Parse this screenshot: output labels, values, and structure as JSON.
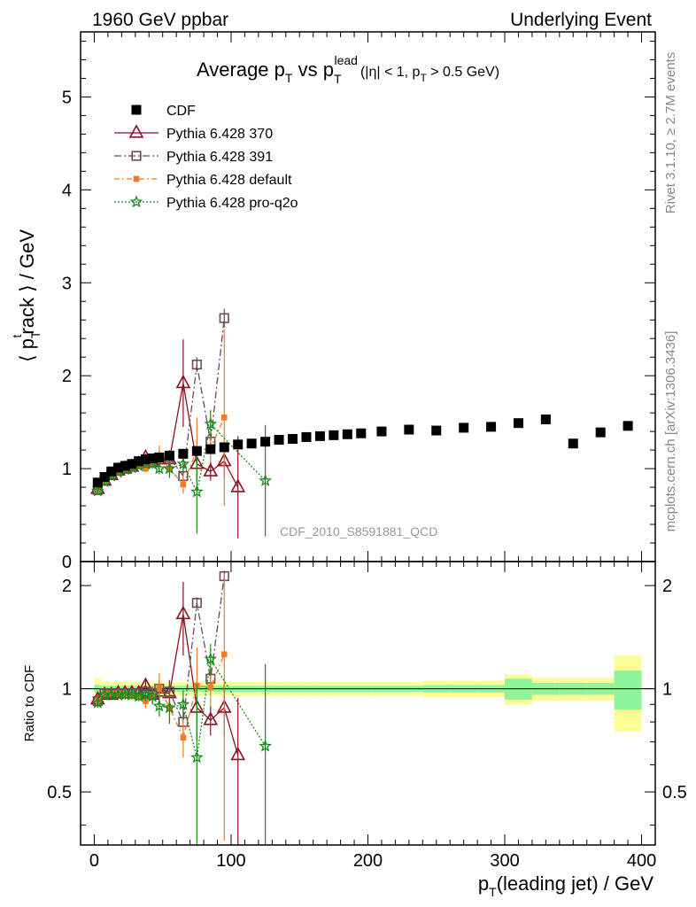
{
  "header": {
    "left": "1960 GeV ppbar",
    "right": "Underlying Event"
  },
  "side_labels": {
    "rivet": "Rivet 3.1.10, ≥ 2.7M events",
    "mcplots": "mcplots.cern.ch [arXiv:1306.3436]"
  },
  "chart_data": {
    "type": "scatter",
    "title_parts": {
      "a": "Average p",
      "a_sub": "T",
      "b": " vs p",
      "b_sub": "T",
      "b_sup": "lead",
      "c": "(|η| < 1, p",
      "c_sub": "T",
      "d": " > 0.5 GeV)"
    },
    "analysis_id": "CDF_2010_S8591881_QCD",
    "ylabel_main_parts": {
      "a": "⟨ p",
      "sup": "t",
      "sub": "T",
      "b": "rack ⟩ / GeV"
    },
    "ylabel_ratio": "Ratio to CDF",
    "xlabel_parts": {
      "a": "p",
      "sub": "T",
      "b": "(leading jet) / GeV"
    },
    "xlim": [
      -10,
      410
    ],
    "ylim_main": [
      0,
      5.7
    ],
    "ylim_ratio": [
      0.35,
      2.35
    ],
    "ratio_log": true,
    "x_ticks": [
      0,
      100,
      200,
      300,
      400
    ],
    "y_ticks_main": [
      0,
      1,
      2,
      3,
      4,
      5
    ],
    "y_ticks_ratio": [
      0.5,
      1,
      2
    ],
    "legend": [
      "CDF",
      "Pythia 6.428 370",
      "Pythia 6.428 391",
      "Pythia 6.428 default",
      "Pythia 6.428 pro-q2o"
    ],
    "legend_position": "top-left",
    "colors": {
      "cdf": "#000000",
      "p370": "#8b1020",
      "p391": "#6b4a5a",
      "pdefault": "#f47a20",
      "pq2o": "#1a8a1a",
      "band_inner": "#8ff59a",
      "band_outer": "#fdfd96"
    },
    "cdf": {
      "name": "CDF",
      "x": [
        2.5,
        7.5,
        12.5,
        17.5,
        22.5,
        27.5,
        32.5,
        37.5,
        42.5,
        47.5,
        55,
        65,
        75,
        85,
        95,
        105,
        115,
        125,
        135,
        145,
        155,
        165,
        175,
        185,
        195,
        210,
        230,
        250,
        270,
        290,
        310,
        330,
        350,
        370,
        390
      ],
      "y": [
        0.85,
        0.91,
        0.97,
        1.01,
        1.03,
        1.05,
        1.08,
        1.1,
        1.11,
        1.12,
        1.14,
        1.16,
        1.19,
        1.21,
        1.23,
        1.26,
        1.27,
        1.29,
        1.31,
        1.32,
        1.34,
        1.35,
        1.36,
        1.37,
        1.38,
        1.4,
        1.42,
        1.41,
        1.44,
        1.45,
        1.49,
        1.53,
        1.27,
        1.39,
        1.46
      ]
    },
    "band_inner_halfwidth": [
      0.025,
      0.02,
      0.02,
      0.02,
      0.02,
      0.02,
      0.02,
      0.02,
      0.02,
      0.02,
      0.02,
      0.02,
      0.02,
      0.02,
      0.02,
      0.02,
      0.02,
      0.02,
      0.02,
      0.02,
      0.02,
      0.02,
      0.02,
      0.02,
      0.02,
      0.02,
      0.02,
      0.025,
      0.025,
      0.025,
      0.07,
      0.04,
      0.04,
      0.04,
      0.13
    ],
    "band_outer_halfwidth": [
      0.075,
      0.05,
      0.05,
      0.05,
      0.05,
      0.05,
      0.045,
      0.045,
      0.045,
      0.045,
      0.045,
      0.045,
      0.045,
      0.045,
      0.045,
      0.045,
      0.045,
      0.045,
      0.045,
      0.045,
      0.045,
      0.045,
      0.045,
      0.045,
      0.045,
      0.045,
      0.045,
      0.055,
      0.055,
      0.055,
      0.1,
      0.075,
      0.075,
      0.075,
      0.25
    ],
    "series": [
      {
        "name": "Pythia 6.428 370",
        "key": "p370",
        "marker": "triangle",
        "dash": "",
        "x": [
          2.5,
          7.5,
          12.5,
          17.5,
          22.5,
          27.5,
          32.5,
          37.5,
          42.5,
          47.5,
          55,
          65,
          75,
          85,
          95,
          105
        ],
        "y": [
          0.78,
          0.87,
          0.93,
          0.98,
          1.0,
          1.02,
          1.05,
          1.12,
          1.07,
          1.1,
          1.1,
          1.92,
          1.05,
          0.97,
          1.08,
          0.8
        ],
        "err": [
          0.03,
          0.03,
          0.03,
          0.03,
          0.03,
          0.03,
          0.03,
          0.04,
          0.06,
          0.06,
          0.1,
          0.47,
          0.2,
          0.1,
          0.18,
          0.55
        ],
        "ratio": [
          0.93,
          0.96,
          0.96,
          0.97,
          0.97,
          0.97,
          0.97,
          1.02,
          0.96,
          0.98,
          0.97,
          1.65,
          0.88,
          0.81,
          0.88,
          0.64
        ],
        "ratio_err": [
          0.03,
          0.03,
          0.03,
          0.03,
          0.03,
          0.03,
          0.03,
          0.04,
          0.05,
          0.06,
          0.09,
          0.4,
          0.17,
          0.08,
          0.15,
          0.3
        ]
      },
      {
        "name": "Pythia 6.428 391",
        "key": "p391",
        "marker": "square-open",
        "dash": "8,3,2,3",
        "x": [
          2.5,
          7.5,
          12.5,
          17.5,
          22.5,
          27.5,
          32.5,
          37.5,
          42.5,
          47.5,
          55,
          65,
          75,
          85,
          95
        ],
        "y": [
          0.77,
          0.88,
          0.94,
          0.98,
          1.0,
          1.02,
          1.05,
          1.08,
          1.08,
          1.12,
          1.12,
          0.92,
          2.12,
          1.29,
          2.62
        ],
        "err": [
          0.03,
          0.03,
          0.03,
          0.03,
          0.03,
          0.03,
          0.03,
          0.04,
          0.05,
          0.06,
          0.08,
          0.12,
          0.08,
          0.08,
          0.1
        ],
        "ratio": [
          0.92,
          0.97,
          0.97,
          0.97,
          0.97,
          0.97,
          0.97,
          0.98,
          0.97,
          1.0,
          0.98,
          0.8,
          1.78,
          1.07,
          2.13
        ],
        "ratio_err": [
          0.03,
          0.03,
          0.03,
          0.03,
          0.03,
          0.03,
          0.03,
          0.04,
          0.04,
          0.05,
          0.07,
          0.1,
          0.07,
          0.07,
          0.08
        ]
      },
      {
        "name": "Pythia 6.428 default",
        "key": "pdefault",
        "marker": "square-filled",
        "dash": "6,3,2,3",
        "x": [
          2.5,
          7.5,
          12.5,
          17.5,
          22.5,
          27.5,
          32.5,
          37.5,
          42.5,
          47.5,
          55,
          65,
          75,
          85,
          95
        ],
        "y": [
          0.76,
          0.86,
          0.93,
          0.97,
          0.99,
          1.01,
          1.03,
          1.0,
          1.05,
          1.13,
          1.0,
          0.83,
          1.2,
          1.22,
          1.55
        ],
        "err": [
          0.03,
          0.03,
          0.03,
          0.03,
          0.03,
          0.03,
          0.03,
          0.04,
          0.05,
          0.12,
          0.1,
          0.1,
          0.35,
          0.15,
          0.95
        ],
        "ratio": [
          0.92,
          0.97,
          0.97,
          0.97,
          0.96,
          0.96,
          0.95,
          0.92,
          0.96,
          1.01,
          0.88,
          0.72,
          1.02,
          1.01,
          1.26
        ],
        "ratio_err": [
          0.03,
          0.03,
          0.03,
          0.03,
          0.03,
          0.03,
          0.03,
          0.04,
          0.05,
          0.1,
          0.09,
          0.09,
          0.3,
          0.12,
          0.9
        ]
      },
      {
        "name": "Pythia 6.428 pro-q2o",
        "key": "pq2o",
        "marker": "star",
        "dash": "2,2",
        "x": [
          2.5,
          7.5,
          12.5,
          17.5,
          22.5,
          27.5,
          32.5,
          37.5,
          42.5,
          47.5,
          55,
          65,
          75,
          85,
          125
        ],
        "y": [
          0.76,
          0.86,
          0.92,
          0.96,
          0.99,
          1.01,
          1.03,
          1.05,
          1.05,
          1.0,
          1.0,
          1.05,
          0.75,
          1.48,
          0.87
        ],
        "err": [
          0.03,
          0.03,
          0.03,
          0.03,
          0.03,
          0.03,
          0.03,
          0.04,
          0.05,
          0.06,
          0.1,
          0.1,
          0.45,
          0.15,
          0.6
        ],
        "ratio": [
          0.91,
          0.96,
          0.96,
          0.96,
          0.96,
          0.96,
          0.95,
          0.96,
          0.95,
          0.89,
          0.88,
          0.9,
          0.63,
          1.22,
          0.68
        ],
        "ratio_err": [
          0.03,
          0.03,
          0.03,
          0.03,
          0.03,
          0.03,
          0.03,
          0.04,
          0.05,
          0.06,
          0.09,
          0.09,
          0.4,
          0.13,
          0.5
        ]
      }
    ]
  }
}
